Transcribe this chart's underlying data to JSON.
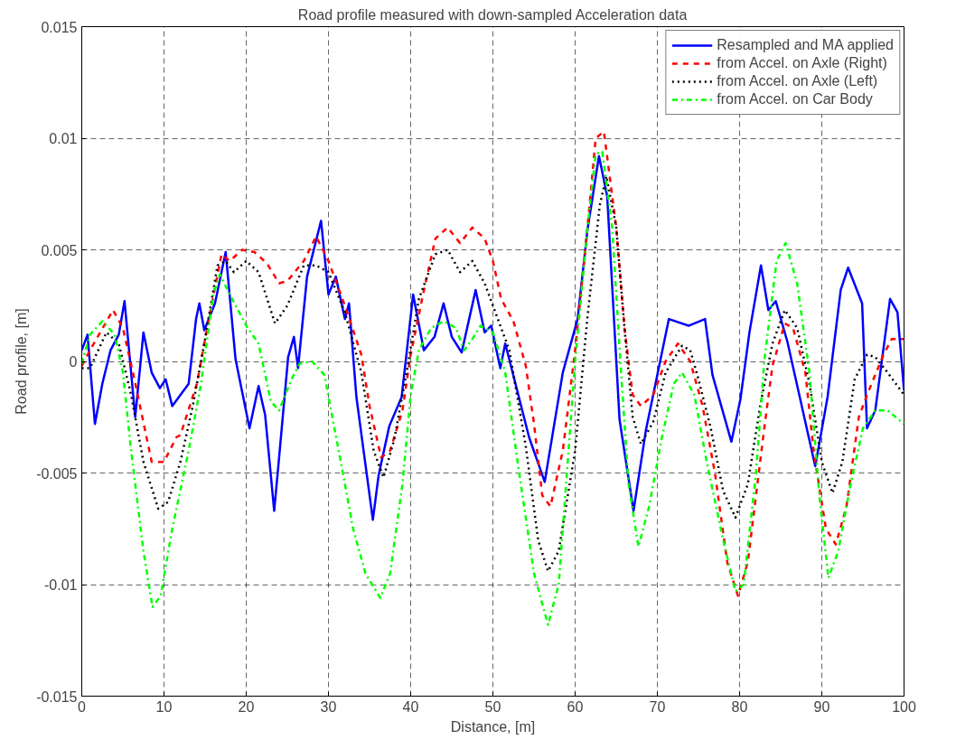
{
  "chart_data": {
    "type": "line",
    "title": "Road profile measured with down-sampled Acceleration data",
    "xlabel": "Distance, [m]",
    "ylabel": "Road profile, [m]",
    "xlim": [
      0,
      100
    ],
    "ylim": [
      -0.015,
      0.015
    ],
    "xticks": [
      0,
      10,
      20,
      30,
      40,
      50,
      60,
      70,
      80,
      90,
      100
    ],
    "yticks": [
      -0.015,
      -0.01,
      -0.005,
      0,
      0.005,
      0.01,
      0.015
    ],
    "grid": true,
    "legend": "top right",
    "marker": "none",
    "series": [
      {
        "name": "Resampled and MA applied",
        "color": "#0000ff",
        "line_style": "solid",
        "x": [
          0,
          0.7,
          1.6,
          2.5,
          3.5,
          4.5,
          5.2,
          6.5,
          7.5,
          8.5,
          9.5,
          10.2,
          11,
          13,
          13.9,
          14.3,
          14.9,
          16.2,
          17.5,
          18.7,
          20.4,
          21.5,
          22.3,
          23.4,
          24,
          25.1,
          25.8,
          26.3,
          27.4,
          29.1,
          30,
          30.9,
          32,
          32.5,
          33.4,
          35.4,
          36.1,
          37.4,
          38.9,
          40.3,
          41.6,
          42.9,
          44,
          45,
          46.2,
          47.9,
          49,
          49.8,
          50.9,
          51.5,
          54.4,
          56.3,
          58.5,
          60.3,
          61.5,
          62.9,
          63.9,
          65.4,
          67.1,
          68.6,
          70,
          71.4,
          73.8,
          75.8,
          76.7,
          79,
          80.1,
          81.2,
          82.6,
          83.5,
          84.4,
          85.8,
          89.2,
          90.7,
          92.3,
          93.2,
          94.9,
          95.5,
          96.5,
          98.3,
          99.2,
          100
        ],
        "values": [
          0.0005,
          0.0012,
          -0.0028,
          -0.001,
          0.0005,
          0.0012,
          0.0027,
          -0.0025,
          0.0013,
          -0.0005,
          -0.0012,
          -0.0008,
          -0.002,
          -0.001,
          0.0019,
          0.0026,
          0.0014,
          0.0026,
          0.0049,
          0.0001,
          -0.003,
          -0.0011,
          -0.0024,
          -0.0067,
          -0.0043,
          0.0002,
          0.0011,
          -0.0003,
          0.0038,
          0.0063,
          0.003,
          0.0038,
          0.0019,
          0.0026,
          -0.0016,
          -0.0071,
          -0.0051,
          -0.0029,
          -0.0016,
          0.003,
          0.0005,
          0.0011,
          0.0026,
          0.0011,
          0.0004,
          0.0032,
          0.0013,
          0.0016,
          -0.0003,
          0.0008,
          -0.0034,
          -0.0054,
          -0.0005,
          0.0019,
          0.0059,
          0.0092,
          0.0074,
          -0.0026,
          -0.0067,
          -0.0031,
          -0.0006,
          0.0019,
          0.0016,
          0.0019,
          -0.0006,
          -0.0036,
          -0.0017,
          0.0013,
          0.0043,
          0.0023,
          0.0027,
          0.0009,
          -0.0047,
          -0.0016,
          0.0032,
          0.0042,
          0.0026,
          -0.003,
          -0.0022,
          0.0028,
          0.0022,
          -0.0013
        ]
      },
      {
        "name": "from Accel. on Axle (Right)",
        "color": "#ff0000",
        "line_style": "dashed",
        "x": [
          0,
          1,
          3.8,
          5,
          6.4,
          8.5,
          10,
          11.5,
          12,
          14,
          15.5,
          17,
          18,
          19.5,
          21,
          22.5,
          24,
          25,
          27,
          28.5,
          30,
          32,
          34,
          35,
          36.4,
          37.5,
          39,
          40,
          41.5,
          43,
          44.5,
          46,
          47.5,
          49,
          50,
          51,
          52.5,
          54,
          55,
          56,
          57,
          58.5,
          60,
          61.5,
          62.5,
          63.5,
          65,
          66,
          67,
          68,
          69.5,
          71,
          72.5,
          74,
          75.5,
          77,
          78.5,
          79.8,
          81,
          82,
          83,
          84,
          85.5,
          86.5,
          88,
          89,
          90.5,
          91.7,
          93,
          94.5,
          95.5,
          97.5,
          98.5,
          100
        ],
        "values": [
          -0.0002,
          0.0005,
          0.0023,
          0.0015,
          -0.0008,
          -0.0045,
          -0.0045,
          -0.0034,
          -0.0033,
          -0.001,
          0.002,
          0.0048,
          0.0045,
          0.005,
          0.0049,
          0.0044,
          0.0035,
          0.0036,
          0.0045,
          0.0056,
          0.0045,
          0.0025,
          0.0003,
          -0.002,
          -0.0043,
          -0.004,
          -0.0022,
          0.0003,
          0.003,
          0.0055,
          0.006,
          0.0053,
          0.006,
          0.0055,
          0.0045,
          0.0028,
          0.0018,
          -0.0002,
          -0.0028,
          -0.006,
          -0.0065,
          -0.004,
          0.0005,
          0.006,
          0.01,
          0.0103,
          0.006,
          0.0015,
          -0.0015,
          -0.002,
          -0.0015,
          0,
          0.0008,
          0,
          -0.002,
          -0.005,
          -0.009,
          -0.0105,
          -0.009,
          -0.006,
          -0.003,
          -0.0002,
          0.0017,
          0.0015,
          -0.0005,
          -0.004,
          -0.0075,
          -0.0082,
          -0.0065,
          -0.0025,
          -0.0015,
          0.0003,
          0.001,
          0.001
        ]
      },
      {
        "name": "from Accel. on Axle (Left)",
        "color": "#000000",
        "line_style": "dotted",
        "x": [
          0,
          1,
          3,
          4.5,
          6,
          7.5,
          9.3,
          10.5,
          12,
          13.5,
          15,
          16.5,
          17.5,
          18.5,
          20,
          21.5,
          23.5,
          25,
          27,
          28.5,
          30,
          32,
          34,
          35.5,
          36.7,
          38,
          39.5,
          41,
          43,
          44.5,
          46,
          47.5,
          49,
          50,
          52,
          54,
          55.5,
          56.7,
          58,
          60,
          61.5,
          63,
          63.8,
          65,
          66,
          67,
          68,
          69.5,
          71,
          73,
          74,
          75,
          76.5,
          78,
          79.5,
          81,
          82.5,
          84,
          85.5,
          87,
          88.5,
          90,
          91.3,
          92.5,
          94,
          95.5,
          96.5,
          98,
          100
        ],
        "values": [
          -0.0003,
          -0.0003,
          0.0013,
          0.0008,
          -0.0015,
          -0.0045,
          -0.0066,
          -0.0063,
          -0.0045,
          -0.002,
          0.001,
          0.0043,
          0.0045,
          0.004,
          0.0045,
          0.004,
          0.0017,
          0.0025,
          0.0043,
          0.0043,
          0.004,
          0.0022,
          -0.0005,
          -0.004,
          -0.0052,
          -0.0035,
          -0.0005,
          0.0028,
          0.0048,
          0.005,
          0.004,
          0.0045,
          0.0035,
          0.0025,
          0.0005,
          -0.0038,
          -0.008,
          -0.0094,
          -0.0085,
          -0.004,
          0.002,
          0.007,
          0.0083,
          0.006,
          0.0015,
          -0.0025,
          -0.0037,
          -0.0027,
          -0.0005,
          0.0007,
          0.0005,
          -0.0008,
          -0.003,
          -0.0058,
          -0.007,
          -0.0055,
          -0.002,
          0.0008,
          0.0023,
          0.0015,
          -0.001,
          -0.0045,
          -0.0059,
          -0.0045,
          -0.0008,
          0.0003,
          0.0002,
          -0.0005,
          -0.0015
        ]
      },
      {
        "name": "from Accel. on Car Body",
        "color": "#00ff00",
        "line_style": "dashdot",
        "x": [
          0,
          1,
          2.5,
          4,
          5,
          6,
          7.5,
          8.6,
          9.6,
          11,
          13,
          14.5,
          16,
          16.8,
          18,
          20,
          21.5,
          23,
          24,
          25.5,
          26.5,
          28,
          29.5,
          31.5,
          33,
          34.5,
          36.3,
          37.5,
          39,
          40,
          41,
          42.5,
          44,
          45.5,
          46.5,
          47.5,
          48.5,
          50,
          51.5,
          53,
          55,
          56.7,
          58,
          59,
          60,
          61.5,
          62.5,
          63.3,
          64.5,
          65.5,
          66.5,
          67.7,
          69,
          70.5,
          72,
          73,
          74.5,
          76,
          78,
          79.5,
          80.5,
          82,
          83,
          84.5,
          85.6,
          87,
          88.5,
          89.7,
          90.8,
          92,
          93.5,
          95,
          96.5,
          98,
          100
        ],
        "values": [
          -0.0001,
          0.0012,
          0.0018,
          0.0012,
          -0.0005,
          -0.004,
          -0.0085,
          -0.011,
          -0.0105,
          -0.0075,
          -0.004,
          -0.001,
          0.003,
          0.0039,
          0.003,
          0.0016,
          0.0008,
          -0.0018,
          -0.0022,
          -0.0008,
          -0.0001,
          0,
          -0.0006,
          -0.0045,
          -0.0075,
          -0.0095,
          -0.0106,
          -0.0095,
          -0.0055,
          -0.0015,
          0.0005,
          0.0015,
          0.0018,
          0.0015,
          0.0005,
          0.001,
          0.0016,
          0.0013,
          -0.0005,
          -0.0045,
          -0.0095,
          -0.0118,
          -0.01,
          -0.005,
          0,
          0.006,
          0.0093,
          0.0094,
          0.006,
          0,
          -0.0055,
          -0.0083,
          -0.0065,
          -0.0035,
          -0.001,
          -0.0005,
          -0.0015,
          -0.0045,
          -0.008,
          -0.0103,
          -0.01,
          -0.005,
          0,
          0.0045,
          0.0053,
          0.0035,
          -0.0005,
          -0.006,
          -0.0097,
          -0.0085,
          -0.0055,
          -0.003,
          -0.0022,
          -0.0022,
          -0.0028
        ]
      }
    ]
  }
}
